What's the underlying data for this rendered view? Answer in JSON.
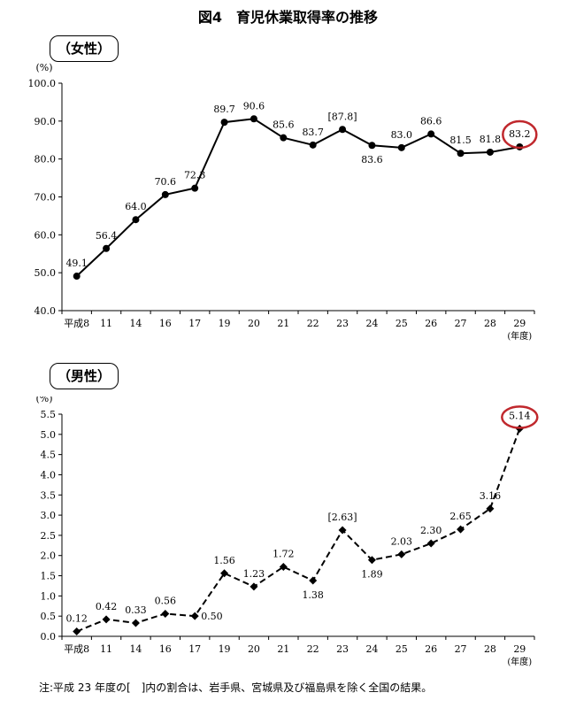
{
  "title": "図4　育児休業取得率の推移",
  "note": "注:平成 23 年度の[　]内の割合は、岩手県、宮城県及び福島県を除く全国の結果。",
  "chart_data": [
    {
      "type": "line",
      "panel_label": "（女性）",
      "unit_label": "(%)",
      "x_unit_label": "(年度)",
      "categories": [
        "平成8",
        "11",
        "14",
        "16",
        "17",
        "19",
        "20",
        "21",
        "22",
        "23",
        "24",
        "25",
        "26",
        "27",
        "28",
        "29"
      ],
      "values": [
        49.1,
        56.4,
        64.0,
        70.6,
        72.3,
        89.7,
        90.6,
        85.6,
        83.7,
        87.8,
        83.6,
        83.0,
        86.6,
        81.5,
        81.8,
        83.2
      ],
      "value_labels": [
        "49.1",
        "56.4",
        "64.0",
        "70.6",
        "72.3",
        "89.7",
        "90.6",
        "85.6",
        "83.7",
        "[87.8]",
        "83.6",
        "83.0",
        "86.6",
        "81.5",
        "81.8",
        "83.2"
      ],
      "ylim": [
        40.0,
        100.0
      ],
      "yticks": [
        "40.0",
        "50.0",
        "60.0",
        "70.0",
        "80.0",
        "90.0",
        "100.0"
      ],
      "line_style": "solid",
      "marker": "circle",
      "highlight_index": 15,
      "highlight_color": "#c0282d"
    },
    {
      "type": "line",
      "panel_label": "（男性）",
      "unit_label": "(%)",
      "x_unit_label": "(年度)",
      "categories": [
        "平成8",
        "11",
        "14",
        "16",
        "17",
        "19",
        "20",
        "21",
        "22",
        "23",
        "24",
        "25",
        "26",
        "27",
        "28",
        "29"
      ],
      "values": [
        0.12,
        0.42,
        0.33,
        0.56,
        0.5,
        1.56,
        1.23,
        1.72,
        1.38,
        2.63,
        1.89,
        2.03,
        2.3,
        2.65,
        3.16,
        5.14
      ],
      "value_labels": [
        "0.12",
        "0.42",
        "0.33",
        "0.56",
        "0.50",
        "1.56",
        "1.23",
        "1.72",
        "1.38",
        "[2.63]",
        "1.89",
        "2.03",
        "2.30",
        "2.65",
        "3.16",
        "5.14"
      ],
      "ylim": [
        0.0,
        5.5
      ],
      "yticks": [
        "0.0",
        "0.5",
        "1.0",
        "1.5",
        "2.0",
        "2.5",
        "3.0",
        "3.5",
        "4.0",
        "4.5",
        "5.0",
        "5.5"
      ],
      "line_style": "dashed",
      "marker": "diamond",
      "highlight_index": 15,
      "highlight_color": "#c0282d"
    }
  ]
}
